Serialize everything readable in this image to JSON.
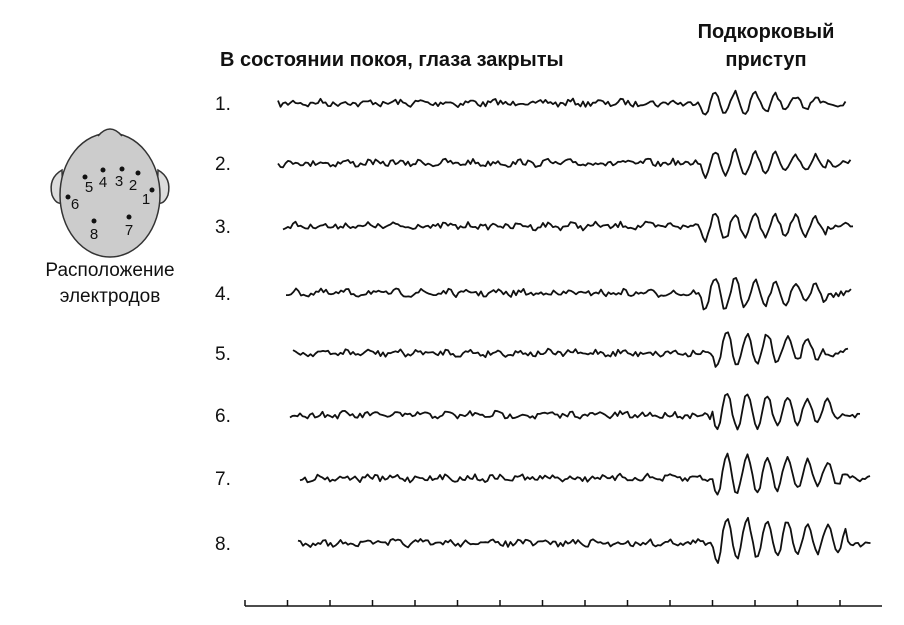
{
  "header": {
    "rest_label": "В состоянии покоя, глаза закрыты",
    "seizure_label": [
      "Подкорковый",
      "приступ"
    ]
  },
  "head": {
    "electrodes": [
      "1",
      "2",
      "3",
      "4",
      "5",
      "6",
      "7",
      "8"
    ],
    "caption": [
      "Расположение",
      "электродов"
    ]
  },
  "channels": [
    "1.",
    "2.",
    "3.",
    "4.",
    "5.",
    "6.",
    "7.",
    "8."
  ]
}
